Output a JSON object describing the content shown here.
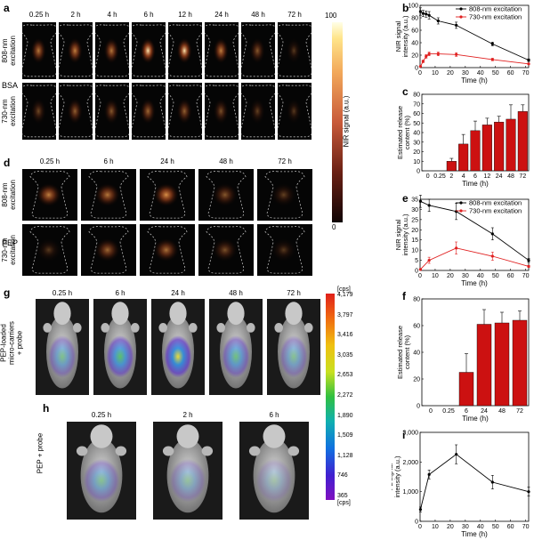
{
  "panels": {
    "a": "a",
    "b": "b",
    "c": "c",
    "d": "d",
    "e": "e",
    "f": "f",
    "g": "g",
    "h": "h",
    "i": "i"
  },
  "panel_a": {
    "times": [
      "0.25 h",
      "2 h",
      "4 h",
      "6 h",
      "12 h",
      "24 h",
      "48 h",
      "72 h"
    ],
    "group": "BSA",
    "row1": "808-nm\nexcitation",
    "row2": "730-nm\nexcitation",
    "intensity_row1": [
      0.55,
      0.6,
      0.55,
      0.85,
      0.8,
      0.6,
      0.35,
      0.15
    ],
    "intensity_row2": [
      0.25,
      0.4,
      0.35,
      0.45,
      0.4,
      0.3,
      0.2,
      0.15
    ]
  },
  "colorbar": {
    "max": "100",
    "min": "0",
    "label": "NIR signal (a.u.)"
  },
  "panel_d": {
    "times": [
      "0.25 h",
      "6 h",
      "24 h",
      "48 h",
      "72 h"
    ],
    "group": "PEP",
    "row1": "808-nm\nexcitation",
    "row2": "730-nm\nexcitation",
    "intensity_row1": [
      0.6,
      0.55,
      0.7,
      0.35,
      0.2
    ],
    "intensity_row2": [
      0.15,
      0.45,
      0.5,
      0.3,
      0.15
    ]
  },
  "panel_g": {
    "times": [
      "0.25 h",
      "6 h",
      "24 h",
      "48 h",
      "72 h"
    ],
    "side_label": "PEP-loaded\nmicro-carriers\n+ probe",
    "intensity": [
      0.45,
      0.7,
      0.85,
      0.55,
      0.4
    ]
  },
  "panel_h": {
    "times": [
      "0.25 h",
      "2 h",
      "6 h"
    ],
    "side_label": "PEP + probe",
    "intensity": [
      0.4,
      0.3,
      0.2
    ]
  },
  "fl_scale": {
    "unit_top": "[cps]",
    "unit_bottom": "[cps]",
    "ticks": [
      "4,179",
      "3,797",
      "3,416",
      "3,035",
      "2,653",
      "2,272",
      "1,890",
      "1,509",
      "1,128",
      "746",
      "365"
    ]
  },
  "colors": {
    "series_808": "#000000",
    "series_730": "#e02020",
    "bar": "#cc1111"
  },
  "chart_data": [
    {
      "id": "b",
      "type": "line",
      "xlabel": "Time (h)",
      "ylabel": "NIR signal\nintensity (a.u.)",
      "xlim": [
        0,
        72
      ],
      "ylim": [
        0,
        100
      ],
      "xticks": [
        0,
        10,
        20,
        30,
        40,
        50,
        60,
        70
      ],
      "yticks": [
        0,
        20,
        40,
        60,
        80,
        100
      ],
      "legend_position": "top-right",
      "series": [
        {
          "name": "808-nm excitation",
          "x": [
            0.25,
            2,
            4,
            6,
            12,
            24,
            48,
            72
          ],
          "y": [
            90,
            87,
            86,
            84,
            75,
            68,
            38,
            12
          ],
          "err": [
            6,
            5,
            5,
            6,
            5,
            5,
            3,
            2
          ]
        },
        {
          "name": "730-nm excitation",
          "x": [
            0.25,
            2,
            4,
            6,
            12,
            24,
            48,
            72
          ],
          "y": [
            2,
            10,
            18,
            22,
            22,
            21,
            13,
            6
          ],
          "err": [
            1,
            2,
            3,
            3,
            3,
            3,
            2,
            1
          ]
        }
      ]
    },
    {
      "id": "c",
      "type": "bar",
      "xlabel": "Time (h)",
      "ylabel": "Estimated release\ncontent (%)",
      "ylim": [
        0,
        80
      ],
      "yticks": [
        0,
        10,
        20,
        30,
        40,
        50,
        60,
        70,
        80
      ],
      "categories": [
        "0",
        "0.25",
        "2",
        "4",
        "6",
        "12",
        "24",
        "48",
        "72"
      ],
      "values": [
        0,
        0,
        10,
        28,
        42,
        48,
        51,
        54,
        62
      ],
      "err": [
        0,
        0,
        3,
        10,
        10,
        7,
        6,
        15,
        7
      ]
    },
    {
      "id": "e",
      "type": "line",
      "xlabel": "Time (h)",
      "ylabel": "NIR signal\nintensity (a.u.)",
      "xlim": [
        0,
        72
      ],
      "ylim": [
        0,
        35
      ],
      "xticks": [
        0,
        10,
        20,
        30,
        40,
        50,
        60,
        70
      ],
      "yticks": [
        0,
        5,
        10,
        15,
        20,
        25,
        30,
        35
      ],
      "legend_position": "top-right",
      "series": [
        {
          "name": "808-nm excitation",
          "x": [
            0.25,
            6,
            24,
            48,
            72
          ],
          "y": [
            34,
            32,
            29,
            18,
            5
          ],
          "err": [
            3,
            3,
            4,
            3,
            1
          ]
        },
        {
          "name": "730-nm excitation",
          "x": [
            0.25,
            6,
            24,
            48,
            72
          ],
          "y": [
            0.5,
            5,
            11,
            7,
            2
          ],
          "err": [
            0.3,
            1.5,
            3,
            2,
            0.5
          ]
        }
      ]
    },
    {
      "id": "f",
      "type": "bar",
      "xlabel": "Time (h)",
      "ylabel": "Estimated release\ncontent (%)",
      "ylim": [
        0,
        80
      ],
      "yticks": [
        0,
        20,
        40,
        60,
        80
      ],
      "categories": [
        "0",
        "0.25",
        "6",
        "24",
        "48",
        "72"
      ],
      "values": [
        0,
        0,
        25,
        61,
        62,
        64
      ],
      "err": [
        0,
        0,
        14,
        11,
        8,
        7
      ]
    },
    {
      "id": "i",
      "type": "line",
      "xlabel": "Time (h)",
      "ylabel": "FL signal\nintensity (a.u.)",
      "xlim": [
        0,
        72
      ],
      "ylim": [
        0,
        3000
      ],
      "xticks": [
        0,
        10,
        20,
        30,
        40,
        50,
        60,
        70
      ],
      "yticks": [
        0,
        1000,
        2000,
        3000
      ],
      "ytick_labels": [
        "0",
        "1,000",
        "2,000",
        "3,000"
      ],
      "series": [
        {
          "name": "",
          "x": [
            0.25,
            6,
            24,
            48,
            72
          ],
          "y": [
            400,
            1580,
            2260,
            1320,
            1000
          ],
          "err": [
            80,
            150,
            320,
            230,
            150
          ]
        }
      ]
    }
  ]
}
